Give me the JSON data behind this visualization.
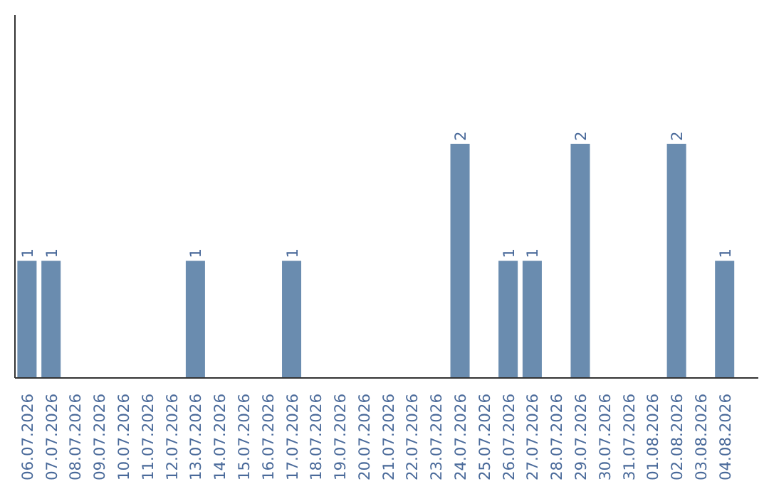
{
  "chart_data": {
    "type": "bar",
    "categories": [
      "06.07.2026",
      "07.07.2026",
      "08.07.2026",
      "09.07.2026",
      "10.07.2026",
      "11.07.2026",
      "12.07.2026",
      "13.07.2026",
      "14.07.2026",
      "15.07.2026",
      "16.07.2026",
      "17.07.2026",
      "18.07.2026",
      "19.07.2026",
      "20.07.2026",
      "21.07.2026",
      "22.07.2026",
      "23.07.2026",
      "24.07.2026",
      "25.07.2026",
      "26.07.2026",
      "27.07.2026",
      "28.07.2026",
      "29.07.2026",
      "30.07.2026",
      "31.07.2026",
      "01.08.2026",
      "02.08.2026",
      "03.08.2026",
      "04.08.2026"
    ],
    "values": [
      1,
      1,
      0,
      0,
      0,
      0,
      0,
      1,
      0,
      0,
      0,
      1,
      0,
      0,
      0,
      0,
      0,
      0,
      2,
      0,
      1,
      1,
      0,
      2,
      0,
      0,
      0,
      2,
      0,
      1
    ],
    "value_labels": [
      "1",
      "1",
      null,
      null,
      null,
      null,
      null,
      "1",
      null,
      null,
      null,
      "1",
      null,
      null,
      null,
      null,
      null,
      null,
      "2",
      null,
      "1",
      "1",
      null,
      "2",
      null,
      null,
      null,
      "2",
      null,
      "1"
    ],
    "color": "#6a8caf",
    "ylim": [
      0,
      3.1
    ],
    "tick_labels": "x",
    "grid": false
  }
}
